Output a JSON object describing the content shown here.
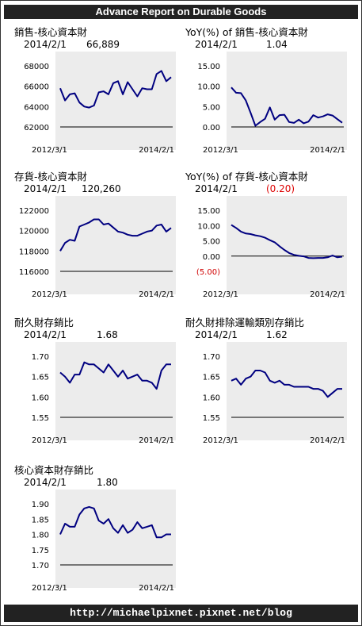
{
  "header": {
    "title": "Advance Report on Durable Goods"
  },
  "footer": {
    "url": "http://michaelpixnet.pixnet.net/blog"
  },
  "chart_data": [
    {
      "id": "sales",
      "type": "line",
      "title": "銷售-核心資本財",
      "latest_date": "2014/2/1",
      "latest_value": "66,889",
      "x_start_label": "2012/3/1",
      "x_end_label": "2014/2/1",
      "ylim": [
        62000,
        68000
      ],
      "yticks": [
        62000,
        64000,
        66000,
        68000
      ],
      "ytick_labels": [
        "62000",
        "64000",
        "66000",
        "68000"
      ],
      "zero_line": null,
      "grid": false,
      "color": "#000080",
      "values": [
        65800,
        64600,
        65200,
        65300,
        64400,
        64000,
        63900,
        64100,
        65400,
        65500,
        65200,
        66300,
        66500,
        65200,
        66400,
        65700,
        65000,
        65800,
        65700,
        65700,
        67200,
        67500,
        66500,
        66889
      ]
    },
    {
      "id": "sales_yoy",
      "type": "line",
      "title": "YoY(%) of 銷售-核心資本財",
      "latest_date": "2014/2/1",
      "latest_value": "1.04",
      "x_start_label": "2012/3/1",
      "x_end_label": "2014/2/1",
      "ylim": [
        0,
        15
      ],
      "yticks": [
        0,
        5,
        10,
        15
      ],
      "ytick_labels": [
        "0.00",
        "5.00",
        "10.00",
        "15.00"
      ],
      "zero_line": 0,
      "grid": false,
      "color": "#000080",
      "values": [
        9.7,
        8.4,
        8.3,
        6.5,
        3.5,
        0.3,
        1.2,
        2.0,
        4.8,
        1.8,
        2.9,
        3.0,
        1.2,
        1.0,
        1.8,
        0.9,
        1.3,
        2.9,
        2.3,
        2.6,
        3.1,
        2.8,
        1.9,
        1.04
      ]
    },
    {
      "id": "inventory",
      "type": "line",
      "title": "存貨-核心資本財",
      "latest_date": "2014/2/1",
      "latest_value": "120,260",
      "x_start_label": "2012/3/1",
      "x_end_label": "2014/2/1",
      "ylim": [
        116000,
        122000
      ],
      "yticks": [
        116000,
        118000,
        120000,
        122000
      ],
      "ytick_labels": [
        "116000",
        "118000",
        "120000",
        "122000"
      ],
      "zero_line": null,
      "grid": false,
      "color": "#000080",
      "values": [
        118000,
        118800,
        119100,
        119000,
        120400,
        120600,
        120800,
        121100,
        121100,
        120600,
        120700,
        120300,
        119900,
        119800,
        119600,
        119500,
        119500,
        119700,
        119900,
        120000,
        120500,
        120600,
        119900,
        120260
      ]
    },
    {
      "id": "inventory_yoy",
      "type": "line",
      "title": "YoY(%) of 存貨-核心資本財",
      "latest_date": "2014/2/1",
      "latest_value": "(0.20)",
      "latest_value_negative": true,
      "x_start_label": "2012/3/1",
      "x_end_label": "2014/2/1",
      "ylim": [
        -5,
        15
      ],
      "yticks": [
        -5,
        0,
        5,
        10,
        15
      ],
      "ytick_labels": [
        "(5.00)",
        "0.00",
        "5.00",
        "10.00",
        "15.00"
      ],
      "negative_tick_color": "#d00000",
      "zero_line": 0,
      "grid": false,
      "color": "#000080",
      "values": [
        10.2,
        9.2,
        8.0,
        7.4,
        7.2,
        6.8,
        6.5,
        6.0,
        5.2,
        4.5,
        3.2,
        2.0,
        1.0,
        0.4,
        0.1,
        -0.1,
        -0.6,
        -0.7,
        -0.6,
        -0.6,
        -0.4,
        0.2,
        -0.4,
        -0.2
      ]
    },
    {
      "id": "durable_is_ratio",
      "type": "line",
      "title": "耐久財存銷比",
      "latest_date": "2014/2/1",
      "latest_value": "1.68",
      "x_start_label": "2012/3/1",
      "x_end_label": "2014/2/1",
      "ylim": [
        1.55,
        1.7
      ],
      "yticks": [
        1.55,
        1.6,
        1.65,
        1.7
      ],
      "ytick_labels": [
        "1.55",
        "1.60",
        "1.65",
        "1.70"
      ],
      "zero_line": null,
      "grid": false,
      "color": "#000080",
      "values": [
        1.66,
        1.65,
        1.635,
        1.655,
        1.655,
        1.685,
        1.68,
        1.68,
        1.67,
        1.66,
        1.68,
        1.665,
        1.65,
        1.665,
        1.645,
        1.65,
        1.655,
        1.64,
        1.64,
        1.635,
        1.62,
        1.665,
        1.68,
        1.68
      ]
    },
    {
      "id": "ex_transport_is_ratio",
      "type": "line",
      "title": "耐久財排除運輸類別存銷比",
      "latest_date": "2014/2/1",
      "latest_value": "1.62",
      "x_start_label": "2012/3/1",
      "x_end_label": "2014/2/1",
      "ylim": [
        1.55,
        1.7
      ],
      "yticks": [
        1.55,
        1.6,
        1.65,
        1.7
      ],
      "ytick_labels": [
        "1.55",
        "1.60",
        "1.65",
        "1.70"
      ],
      "zero_line": null,
      "grid": false,
      "color": "#000080",
      "values": [
        1.64,
        1.645,
        1.63,
        1.645,
        1.65,
        1.665,
        1.665,
        1.66,
        1.64,
        1.635,
        1.64,
        1.63,
        1.63,
        1.625,
        1.625,
        1.625,
        1.625,
        1.62,
        1.62,
        1.615,
        1.6,
        1.61,
        1.62,
        1.62
      ]
    },
    {
      "id": "core_is_ratio",
      "type": "line",
      "title": "核心資本財存銷比",
      "latest_date": "2014/2/1",
      "latest_value": "1.80",
      "x_start_label": "2012/3/1",
      "x_end_label": "2014/2/1",
      "ylim": [
        1.7,
        1.9
      ],
      "yticks": [
        1.7,
        1.75,
        1.8,
        1.85,
        1.9
      ],
      "ytick_labels": [
        "1.70",
        "1.75",
        "1.80",
        "1.85",
        "1.90"
      ],
      "zero_line": null,
      "grid": false,
      "color": "#000080",
      "values": [
        1.8,
        1.835,
        1.825,
        1.825,
        1.865,
        1.885,
        1.89,
        1.885,
        1.845,
        1.835,
        1.85,
        1.82,
        1.805,
        1.83,
        1.805,
        1.815,
        1.84,
        1.82,
        1.825,
        1.83,
        1.79,
        1.79,
        1.8,
        1.8
      ]
    }
  ]
}
